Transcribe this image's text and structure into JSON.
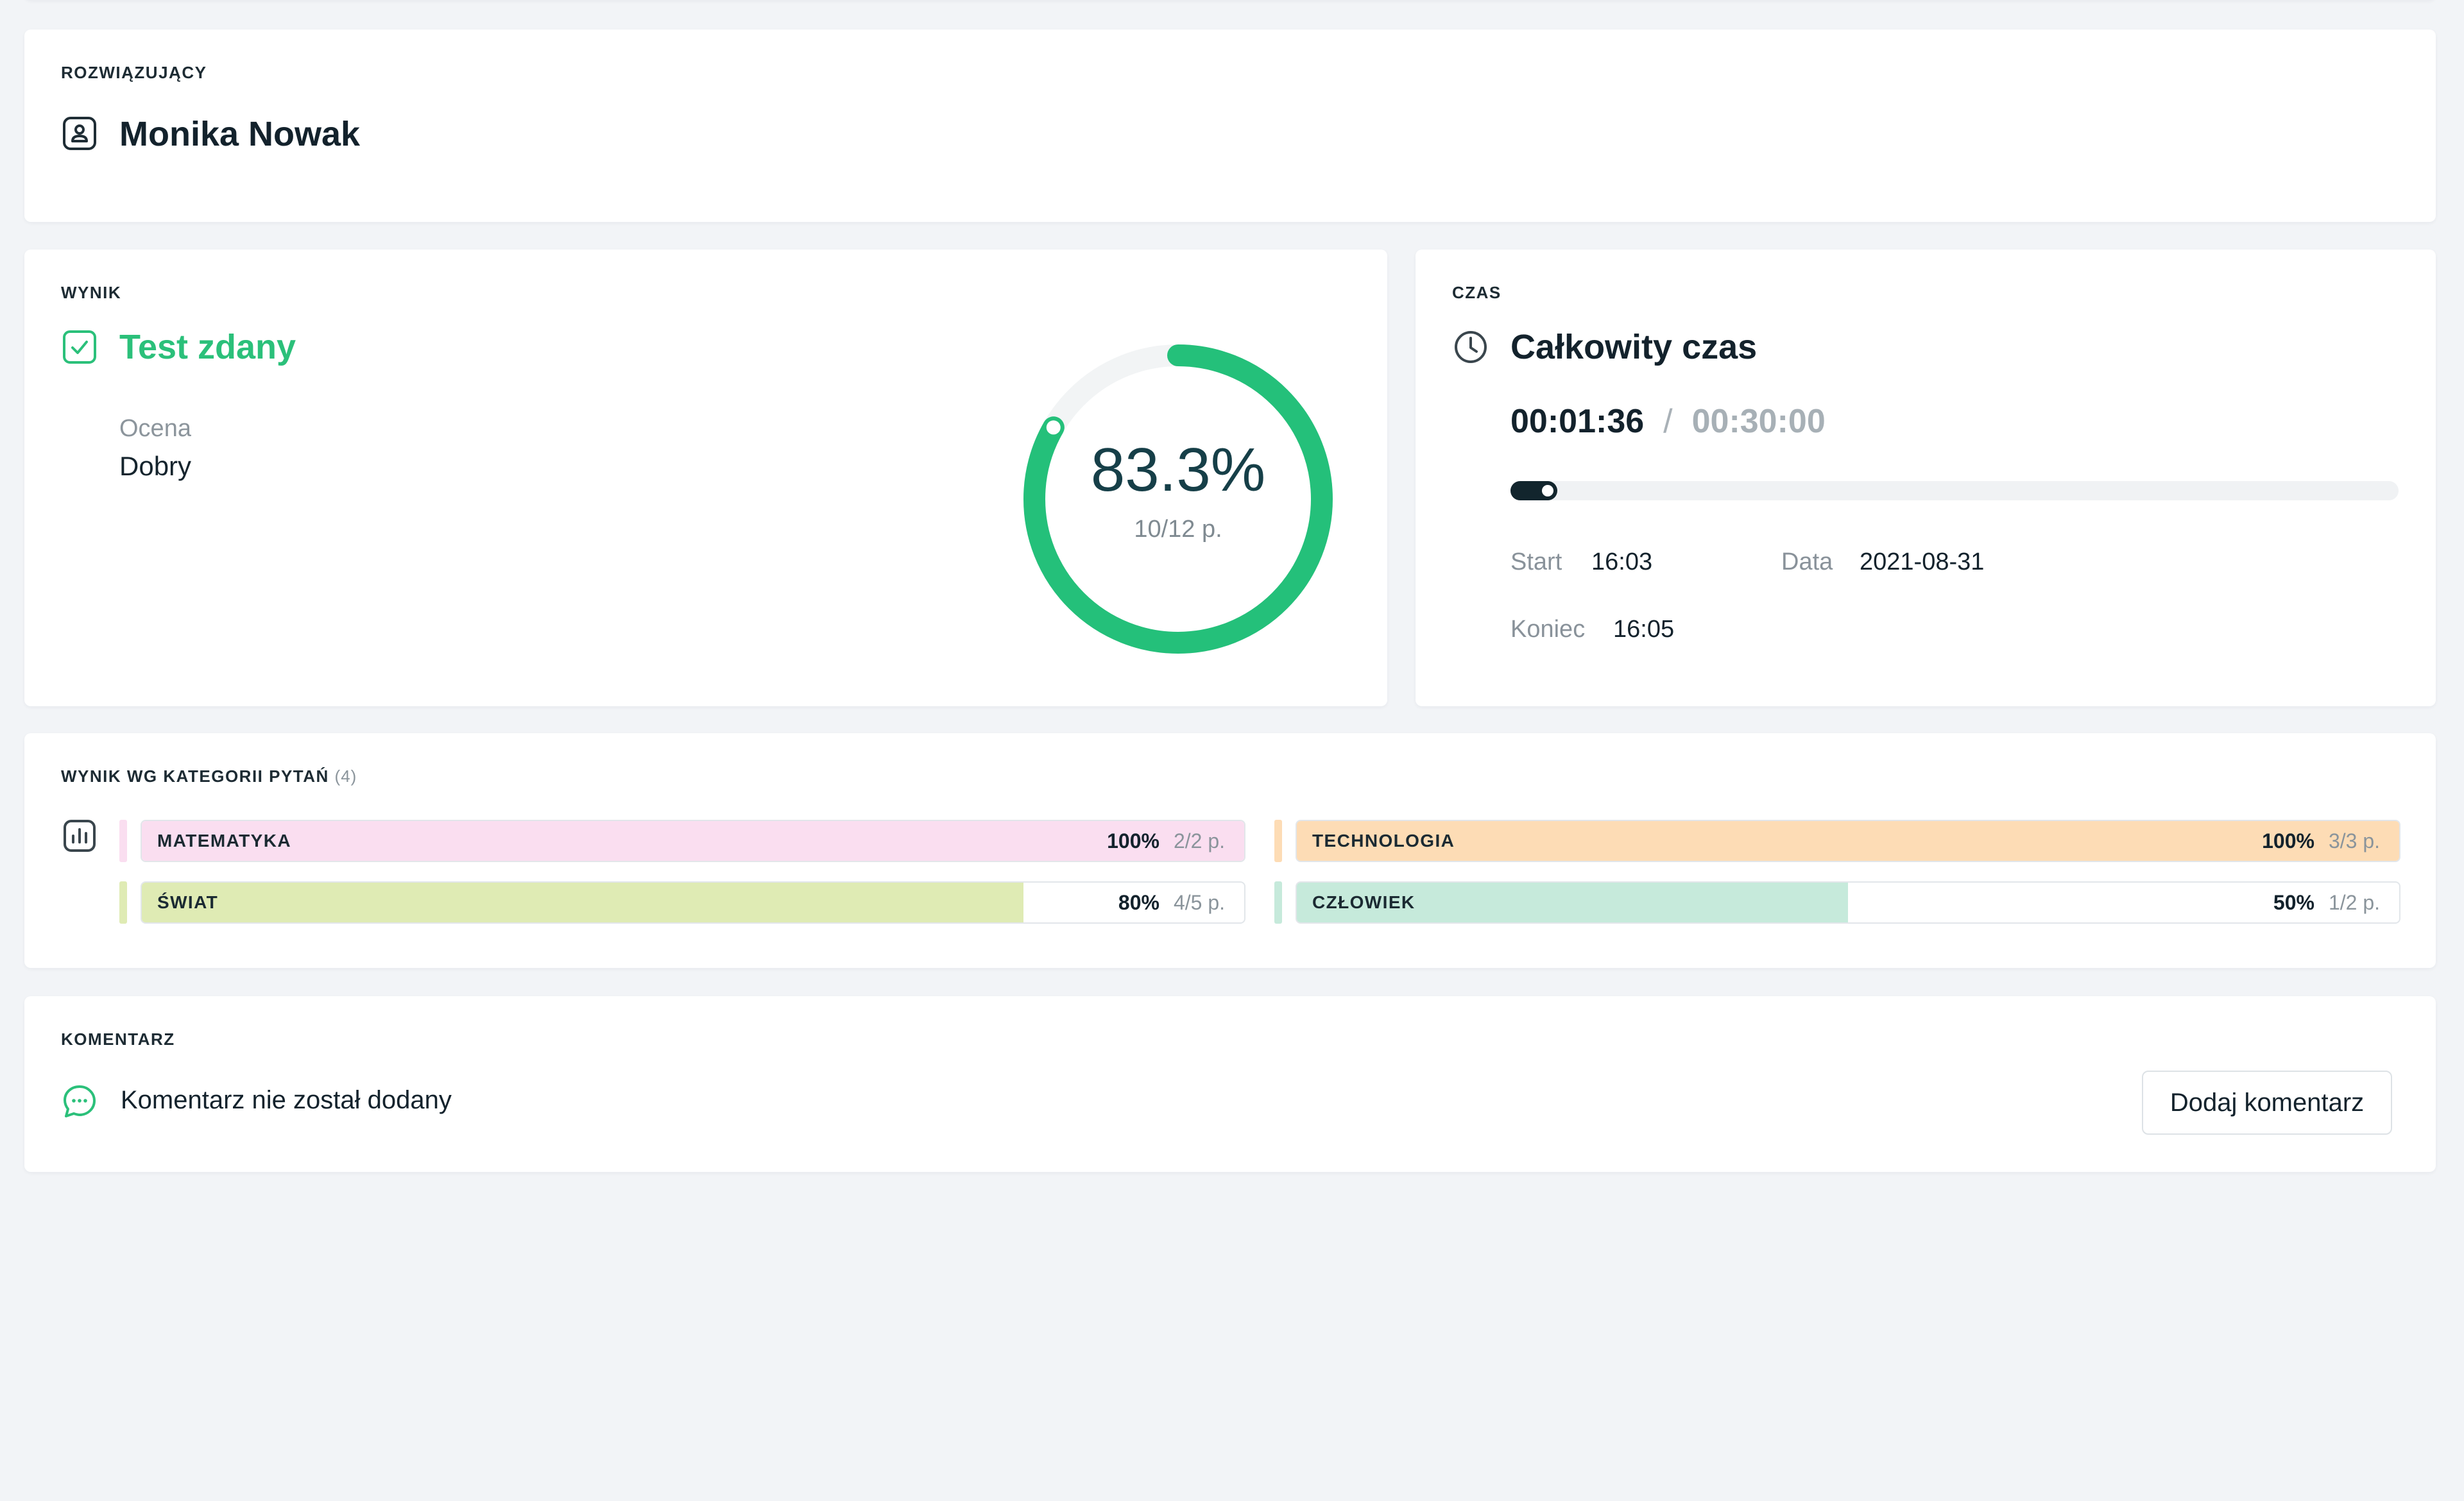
{
  "solver": {
    "section_label": "ROZWIĄZUJĄCY",
    "name": "Monika Nowak",
    "icon": "user-badge-icon"
  },
  "result": {
    "section_label": "WYNIK",
    "status": "Test zdany",
    "status_icon": "checkbox-check-icon",
    "grade_label": "Ocena",
    "grade_value": "Dobry",
    "percent_label": "83.3%",
    "percent_value": 0.833,
    "points_label": "10/12 p.",
    "accent_color": "#24c07a"
  },
  "time": {
    "section_label": "CZAS",
    "title": "Całkowity czas",
    "icon": "clock-icon",
    "elapsed": "00:01:36",
    "separator": "/",
    "limit": "00:30:00",
    "progress_fraction": 0.053,
    "start_label": "Start",
    "start_value": "16:03",
    "date_label": "Data",
    "date_value": "2021-08-31",
    "end_label": "Koniec",
    "end_value": "16:05"
  },
  "categories": {
    "section_label": "WYNIK WG KATEGORII PYTAŃ",
    "count_label": "(4)",
    "icon": "bar-chart-icon",
    "items": [
      {
        "name": "MATEMATYKA",
        "percent": "100%",
        "points": "2/2 p.",
        "fraction": 1.0,
        "fill_color": "#fadef0",
        "accent_color": "#fadef0"
      },
      {
        "name": "TECHNOLOGIA",
        "percent": "100%",
        "points": "3/3 p.",
        "fraction": 1.0,
        "fill_color": "#fddcb5",
        "accent_color": "#fddcb5"
      },
      {
        "name": "ŚWIAT",
        "percent": "80%",
        "points": "4/5 p.",
        "fraction": 0.8,
        "fill_color": "#dfebb4",
        "accent_color": "#dfebb4"
      },
      {
        "name": "CZŁOWIEK",
        "percent": "50%",
        "points": "1/2 p.",
        "fraction": 0.5,
        "fill_color": "#c6eadb",
        "accent_color": "#c6eadb"
      }
    ]
  },
  "comment": {
    "section_label": "KOMENTARZ",
    "icon": "chat-bubble-icon",
    "text": "Komentarz nie został dodany",
    "button_label": "Dodaj komentarz"
  }
}
